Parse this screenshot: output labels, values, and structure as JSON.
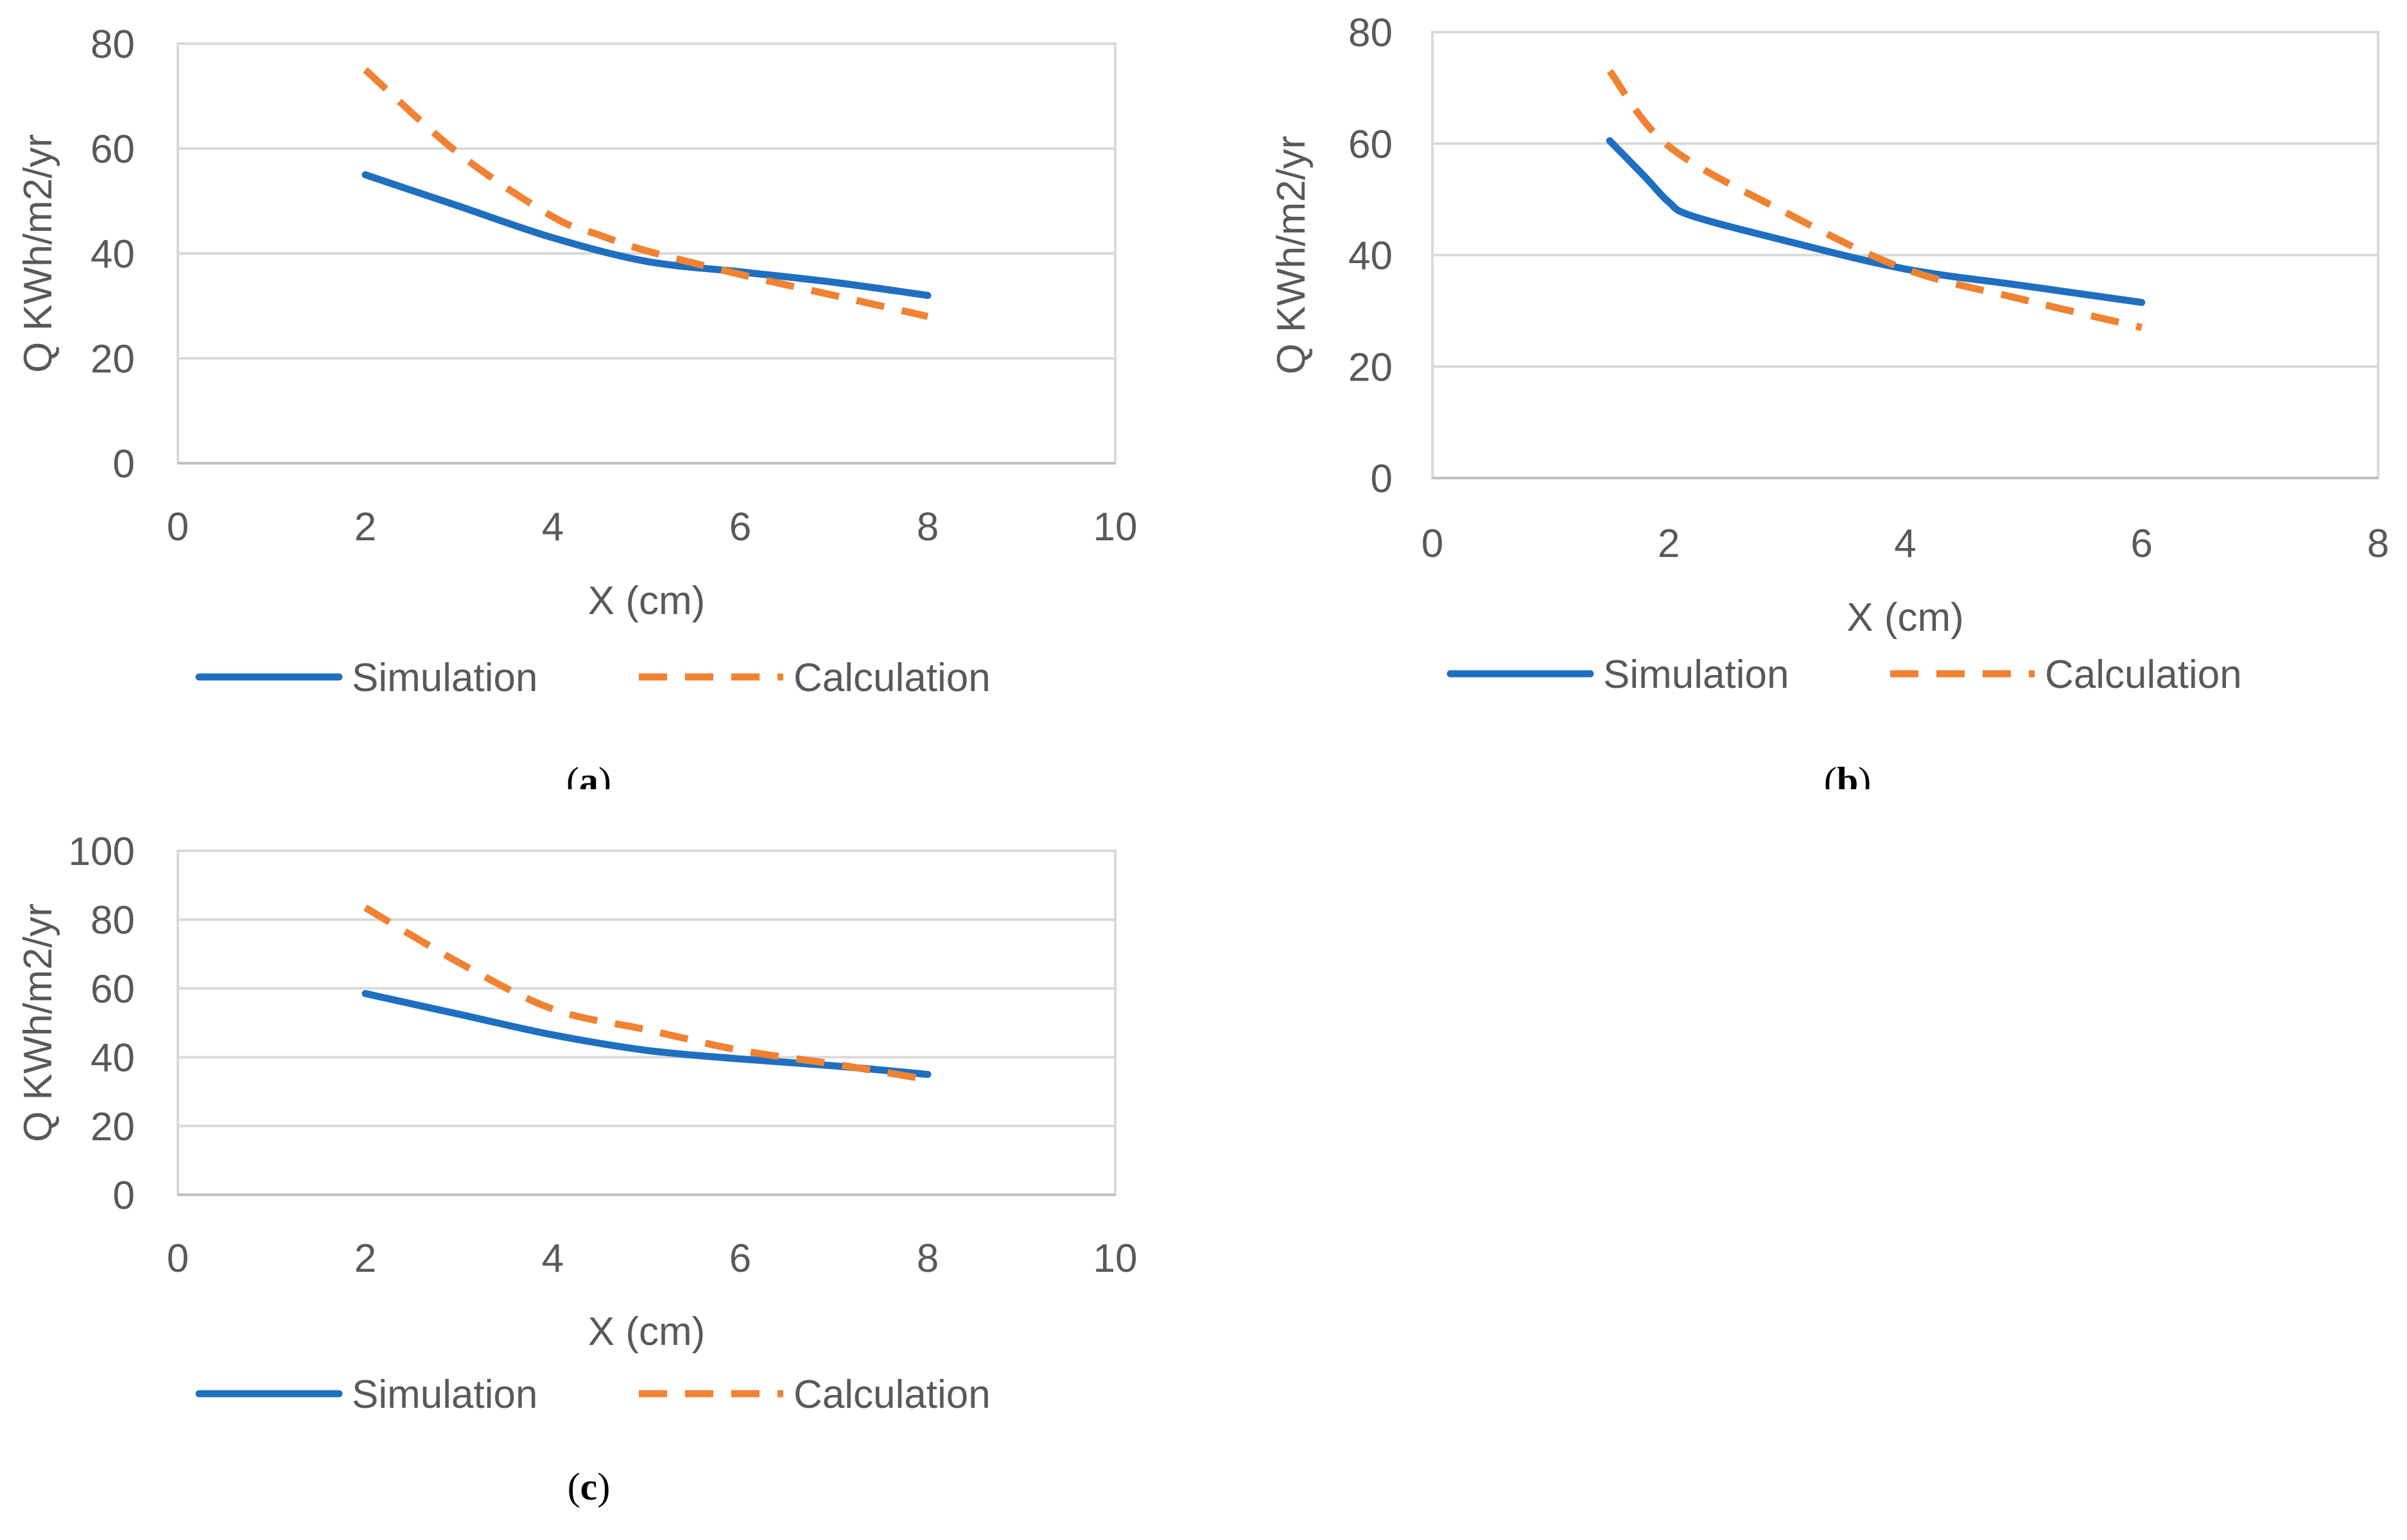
{
  "chart_data": [
    {
      "type": "line",
      "panel_label": "a",
      "xlabel": "X (cm)",
      "ylabel": "Q KWh/m2/yr",
      "xlim": [
        0,
        10
      ],
      "ylim": [
        0,
        80
      ],
      "xticks": [
        0,
        2,
        4,
        6,
        8,
        10
      ],
      "yticks": [
        0,
        20,
        40,
        60,
        80
      ],
      "grid": "horizontal",
      "legend_position": "bottom",
      "series": [
        {
          "name": "Simulation",
          "style": "solid",
          "color": "#1f6fc0",
          "x": [
            2,
            3,
            4,
            5,
            6,
            7,
            8
          ],
          "y": [
            55,
            49,
            43,
            38.5,
            36.5,
            34.5,
            32
          ]
        },
        {
          "name": "Calculation",
          "style": "dashed",
          "color": "#f08232",
          "x": [
            2,
            3,
            4,
            4.5,
            5,
            6,
            7,
            8
          ],
          "y": [
            75,
            59,
            47,
            43.5,
            40.5,
            36,
            32,
            28
          ]
        }
      ]
    },
    {
      "type": "line",
      "panel_label": "b",
      "xlabel": "X (cm)",
      "ylabel": "Q KWh/m2/yr",
      "xlim": [
        0,
        8
      ],
      "ylim": [
        0,
        80
      ],
      "xticks": [
        0,
        2,
        4,
        6,
        8
      ],
      "yticks": [
        0,
        20,
        40,
        60,
        80
      ],
      "grid": "horizontal",
      "legend_position": "bottom",
      "series": [
        {
          "name": "Simulation",
          "style": "solid",
          "color": "#1f6fc0",
          "x": [
            1.5,
            1.8,
            2,
            2.2,
            3,
            4,
            5,
            6
          ],
          "y": [
            60.5,
            54,
            49.5,
            47,
            42.5,
            37.5,
            34.5,
            31.5
          ]
        },
        {
          "name": "Calculation",
          "style": "dashed",
          "color": "#f08232",
          "x": [
            1.5,
            2,
            3,
            4,
            5,
            6
          ],
          "y": [
            73,
            59.5,
            47.5,
            37.5,
            32,
            27
          ]
        }
      ]
    },
    {
      "type": "line",
      "panel_label": "c",
      "xlabel": "X (cm)",
      "ylabel": "Q KWh/m2/yr",
      "xlim": [
        0,
        10
      ],
      "ylim": [
        0,
        100
      ],
      "xticks": [
        0,
        2,
        4,
        6,
        8,
        10
      ],
      "yticks": [
        0,
        20,
        40,
        60,
        80,
        100
      ],
      "grid": "horizontal",
      "legend_position": "bottom",
      "series": [
        {
          "name": "Simulation",
          "style": "solid",
          "color": "#1f6fc0",
          "x": [
            2,
            3,
            4,
            5,
            6,
            7,
            8
          ],
          "y": [
            58.5,
            52.5,
            46.5,
            42,
            39.5,
            37.5,
            35
          ]
        },
        {
          "name": "Calculation",
          "style": "dashed",
          "color": "#f08232",
          "x": [
            2,
            3,
            4,
            5,
            6,
            7,
            8
          ],
          "y": [
            83.5,
            67.5,
            54,
            48,
            42,
            38,
            33.5
          ]
        }
      ]
    }
  ]
}
